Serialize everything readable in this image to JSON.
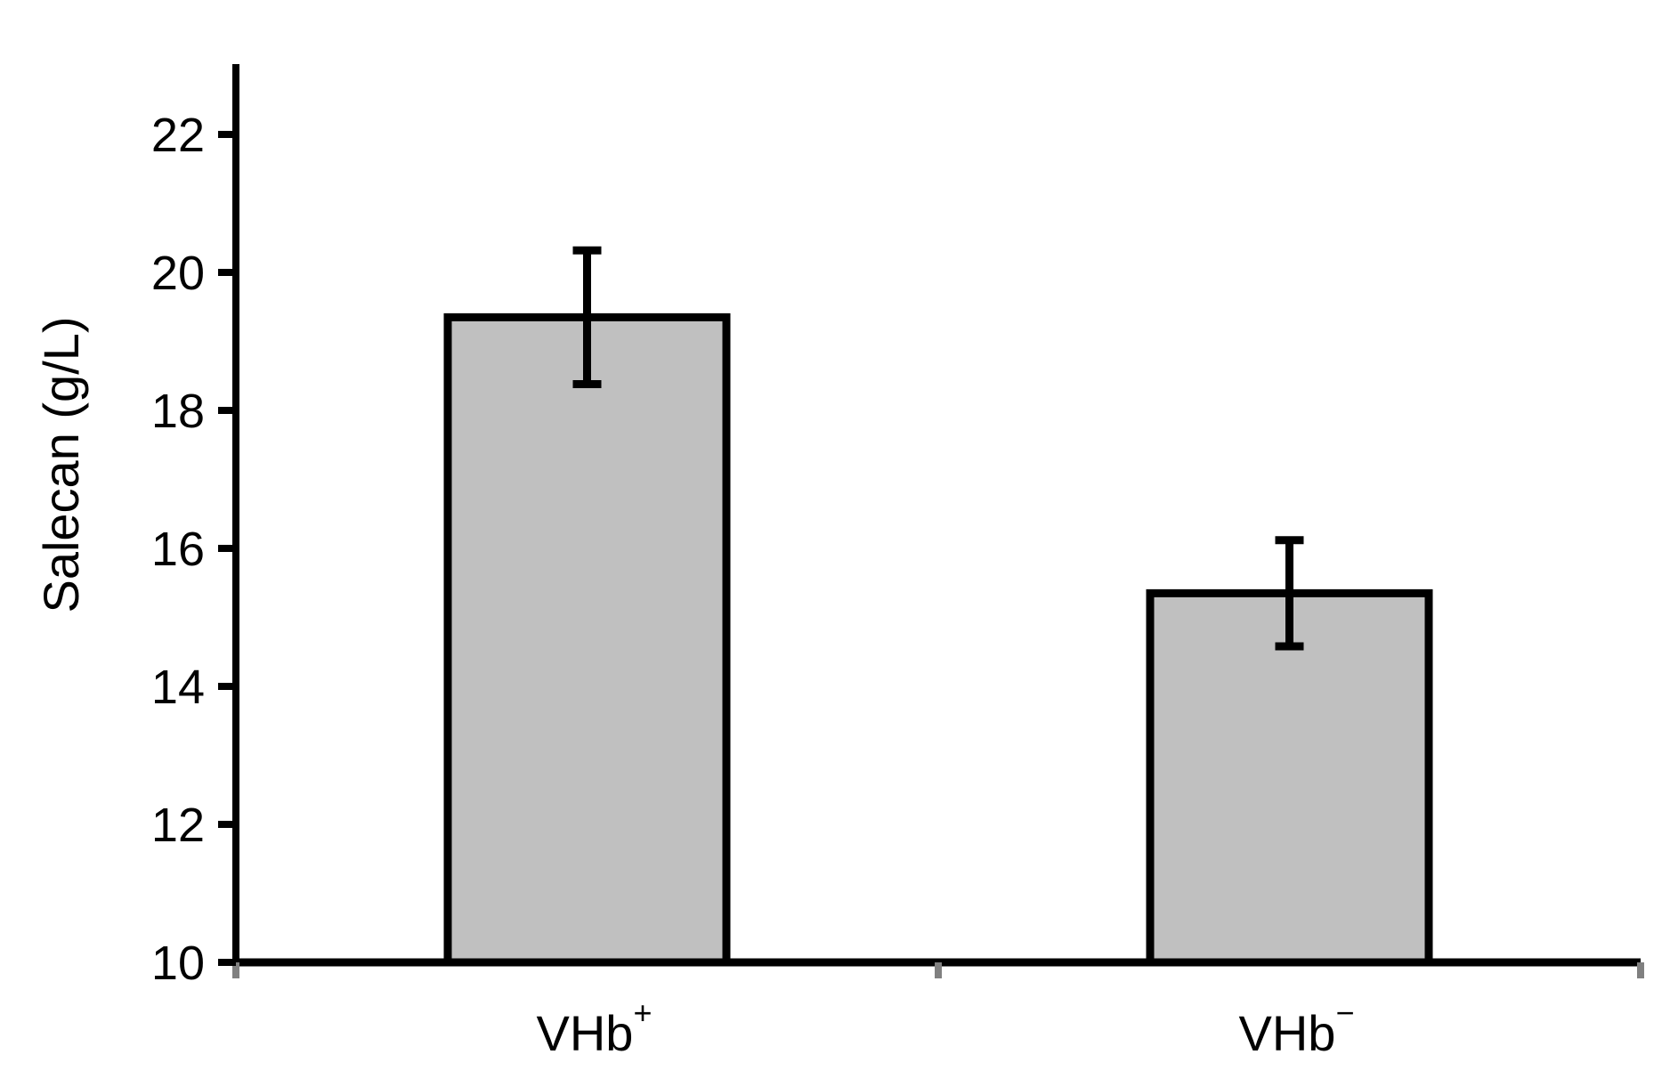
{
  "chart_data": {
    "type": "bar",
    "title": "",
    "xlabel": "",
    "ylabel": "Salecan (g/L)",
    "categories": [
      {
        "base": "VHb",
        "sup": "+"
      },
      {
        "base": "VHb",
        "sup": "−"
      }
    ],
    "values": [
      19.35,
      15.35
    ],
    "errors": [
      0.97,
      0.77
    ],
    "ylim": [
      10,
      23
    ],
    "yticks": [
      10,
      12,
      14,
      16,
      18,
      20,
      22
    ],
    "grid": false,
    "legend": "none",
    "colors": {
      "bar_fill": "#c0c0c0",
      "bar_stroke": "#000000",
      "axis": "#000000",
      "x_tick_mark": "#808080"
    }
  }
}
